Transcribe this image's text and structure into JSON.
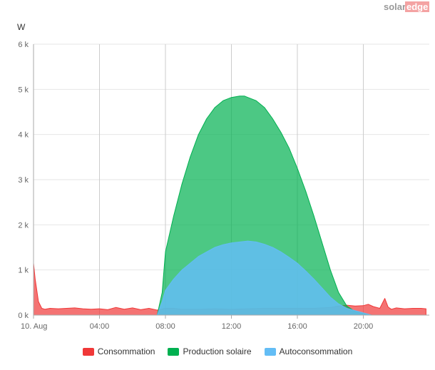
{
  "logo": {
    "part1": "solar",
    "part2": "edge",
    "color1": "#999999",
    "color2_bg": "#f4a3a3"
  },
  "chart_data": {
    "type": "area",
    "unit_label": "W",
    "x_tick_labels": [
      "10. Aug",
      "04:00",
      "08:00",
      "12:00",
      "16:00",
      "20:00"
    ],
    "x_tick_hours": [
      0,
      4,
      8,
      12,
      16,
      20
    ],
    "x_range": [
      0,
      24
    ],
    "y_tick_labels": [
      "0 k",
      "1 k",
      "2 k",
      "3 k",
      "4 k",
      "5 k",
      "6 k"
    ],
    "y_tick_values": [
      0,
      1000,
      2000,
      3000,
      4000,
      5000,
      6000
    ],
    "ylim": [
      0,
      6000
    ],
    "grid": true,
    "legend_position": "bottom",
    "series": [
      {
        "name": "Consommation",
        "color": "#f03838",
        "fill_opacity": 0.7,
        "x": [
          0,
          0.1,
          0.3,
          0.5,
          0.7,
          1.0,
          1.5,
          2.0,
          2.5,
          3.0,
          3.5,
          4.0,
          4.5,
          5.0,
          5.5,
          6.0,
          6.5,
          7.0,
          7.5,
          8.0,
          8.5,
          9.0,
          10.0,
          11.0,
          12.0,
          13.0,
          14.0,
          15.0,
          16.0,
          17.0,
          18.0,
          18.5,
          19.0,
          19.5,
          20.0,
          20.3,
          20.6,
          21.0,
          21.3,
          21.5,
          21.7,
          22.0,
          22.5,
          23.0,
          23.5,
          23.8
        ],
        "y": [
          1150,
          800,
          300,
          150,
          130,
          150,
          140,
          150,
          160,
          140,
          130,
          140,
          120,
          170,
          130,
          160,
          120,
          150,
          110,
          150,
          150,
          130,
          130,
          140,
          130,
          140,
          150,
          150,
          150,
          150,
          170,
          200,
          220,
          200,
          210,
          240,
          190,
          150,
          370,
          180,
          130,
          160,
          140,
          150,
          150,
          140
        ]
      },
      {
        "name": "Production solaire",
        "color": "#00b050",
        "fill_opacity": 0.7,
        "x": [
          7.5,
          7.8,
          8.0,
          8.5,
          9.0,
          9.5,
          10.0,
          10.5,
          11.0,
          11.5,
          12.0,
          12.5,
          12.8,
          13.0,
          13.5,
          14.0,
          14.5,
          15.0,
          15.5,
          16.0,
          16.5,
          17.0,
          17.5,
          18.0,
          18.5,
          19.0,
          19.5,
          20.0,
          20.5
        ],
        "y": [
          0,
          500,
          1400,
          2200,
          2900,
          3500,
          4000,
          4350,
          4600,
          4750,
          4820,
          4850,
          4850,
          4820,
          4750,
          4600,
          4350,
          4050,
          3700,
          3250,
          2750,
          2200,
          1600,
          1000,
          500,
          200,
          80,
          30,
          0
        ]
      },
      {
        "name": "Autoconsommation",
        "color": "#63bdf5",
        "fill_opacity": 0.85,
        "x": [
          7.5,
          7.8,
          8.0,
          8.5,
          9.0,
          9.5,
          10.0,
          10.5,
          11.0,
          11.5,
          12.0,
          12.5,
          13.0,
          13.5,
          14.0,
          14.5,
          15.0,
          15.5,
          16.0,
          16.5,
          17.0,
          17.5,
          18.0,
          18.5,
          19.0,
          19.5,
          20.0,
          20.5
        ],
        "y": [
          0,
          300,
          550,
          800,
          1000,
          1150,
          1300,
          1400,
          1500,
          1560,
          1600,
          1620,
          1640,
          1620,
          1570,
          1500,
          1400,
          1280,
          1150,
          980,
          800,
          600,
          400,
          250,
          150,
          100,
          50,
          0
        ]
      }
    ]
  }
}
